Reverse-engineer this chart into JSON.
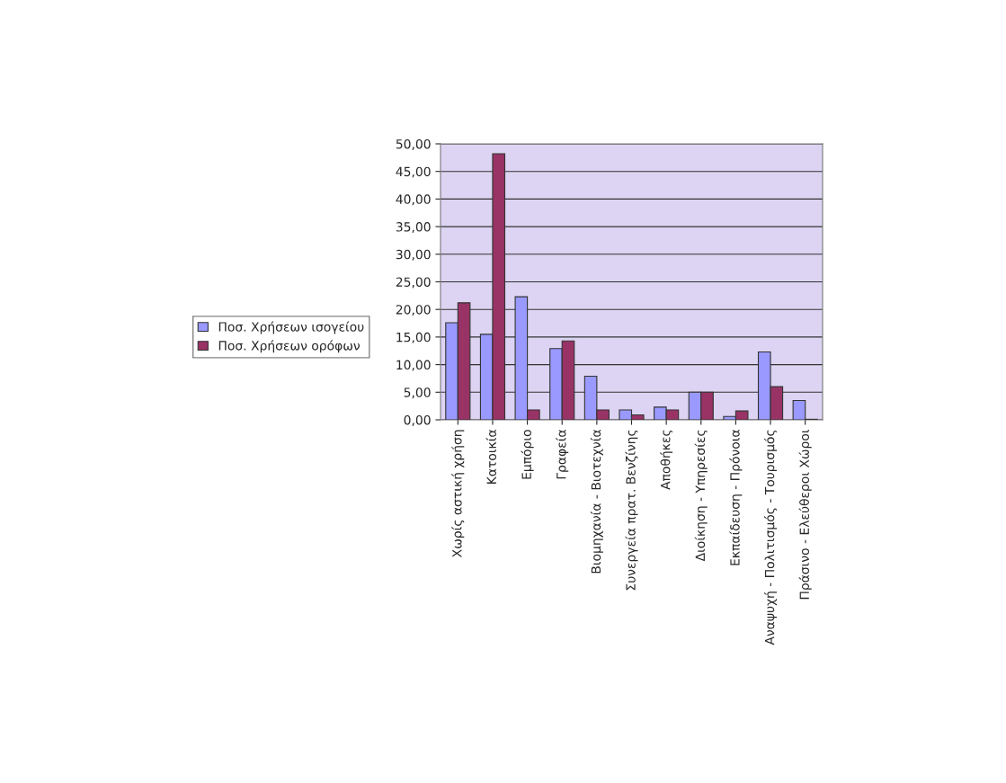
{
  "chart_data": {
    "type": "bar",
    "categories": [
      "Χωρίς αστική χρήση",
      "Κατοικία",
      "Εμπόριο",
      "Γραφεία",
      "Βιομηχανία - Βιοτεχνία",
      "Συνεργεία πρατ. Βενζίνης",
      "Αποθήκες",
      "Διοίκηση - Υπηρεσίες",
      "Εκπαίδευση - Πρόνοια",
      "Αναψυχή - Πολιτισμός - Τουρισμός",
      "Πράσινο - Ελεύθεροι Χώροι"
    ],
    "series": [
      {
        "name": "Ποσ. Χρήσεων ισογείου",
        "color": "#9999ff",
        "values": [
          17.6,
          15.5,
          22.3,
          12.9,
          7.9,
          1.8,
          2.3,
          5.0,
          0.6,
          12.3,
          3.5
        ]
      },
      {
        "name": "Ποσ. Χρήσεων ορόφων",
        "color": "#993366",
        "values": [
          21.2,
          48.2,
          1.8,
          14.3,
          1.8,
          0.9,
          1.8,
          5.0,
          1.6,
          6.0,
          0.1
        ]
      }
    ],
    "ylim": [
      0,
      50
    ],
    "yticks": [
      {
        "value": 0,
        "label": "0,00"
      },
      {
        "value": 5,
        "label": "5,00"
      },
      {
        "value": 10,
        "label": "10,00"
      },
      {
        "value": 15,
        "label": "15,00"
      },
      {
        "value": 20,
        "label": "20,00"
      },
      {
        "value": 25,
        "label": "25,00"
      },
      {
        "value": 30,
        "label": "30,00"
      },
      {
        "value": 35,
        "label": "35,00"
      },
      {
        "value": 40,
        "label": "40,00"
      },
      {
        "value": 45,
        "label": "45,00"
      },
      {
        "value": 50,
        "label": "50,00"
      }
    ],
    "grid": "y",
    "legend": "left"
  }
}
